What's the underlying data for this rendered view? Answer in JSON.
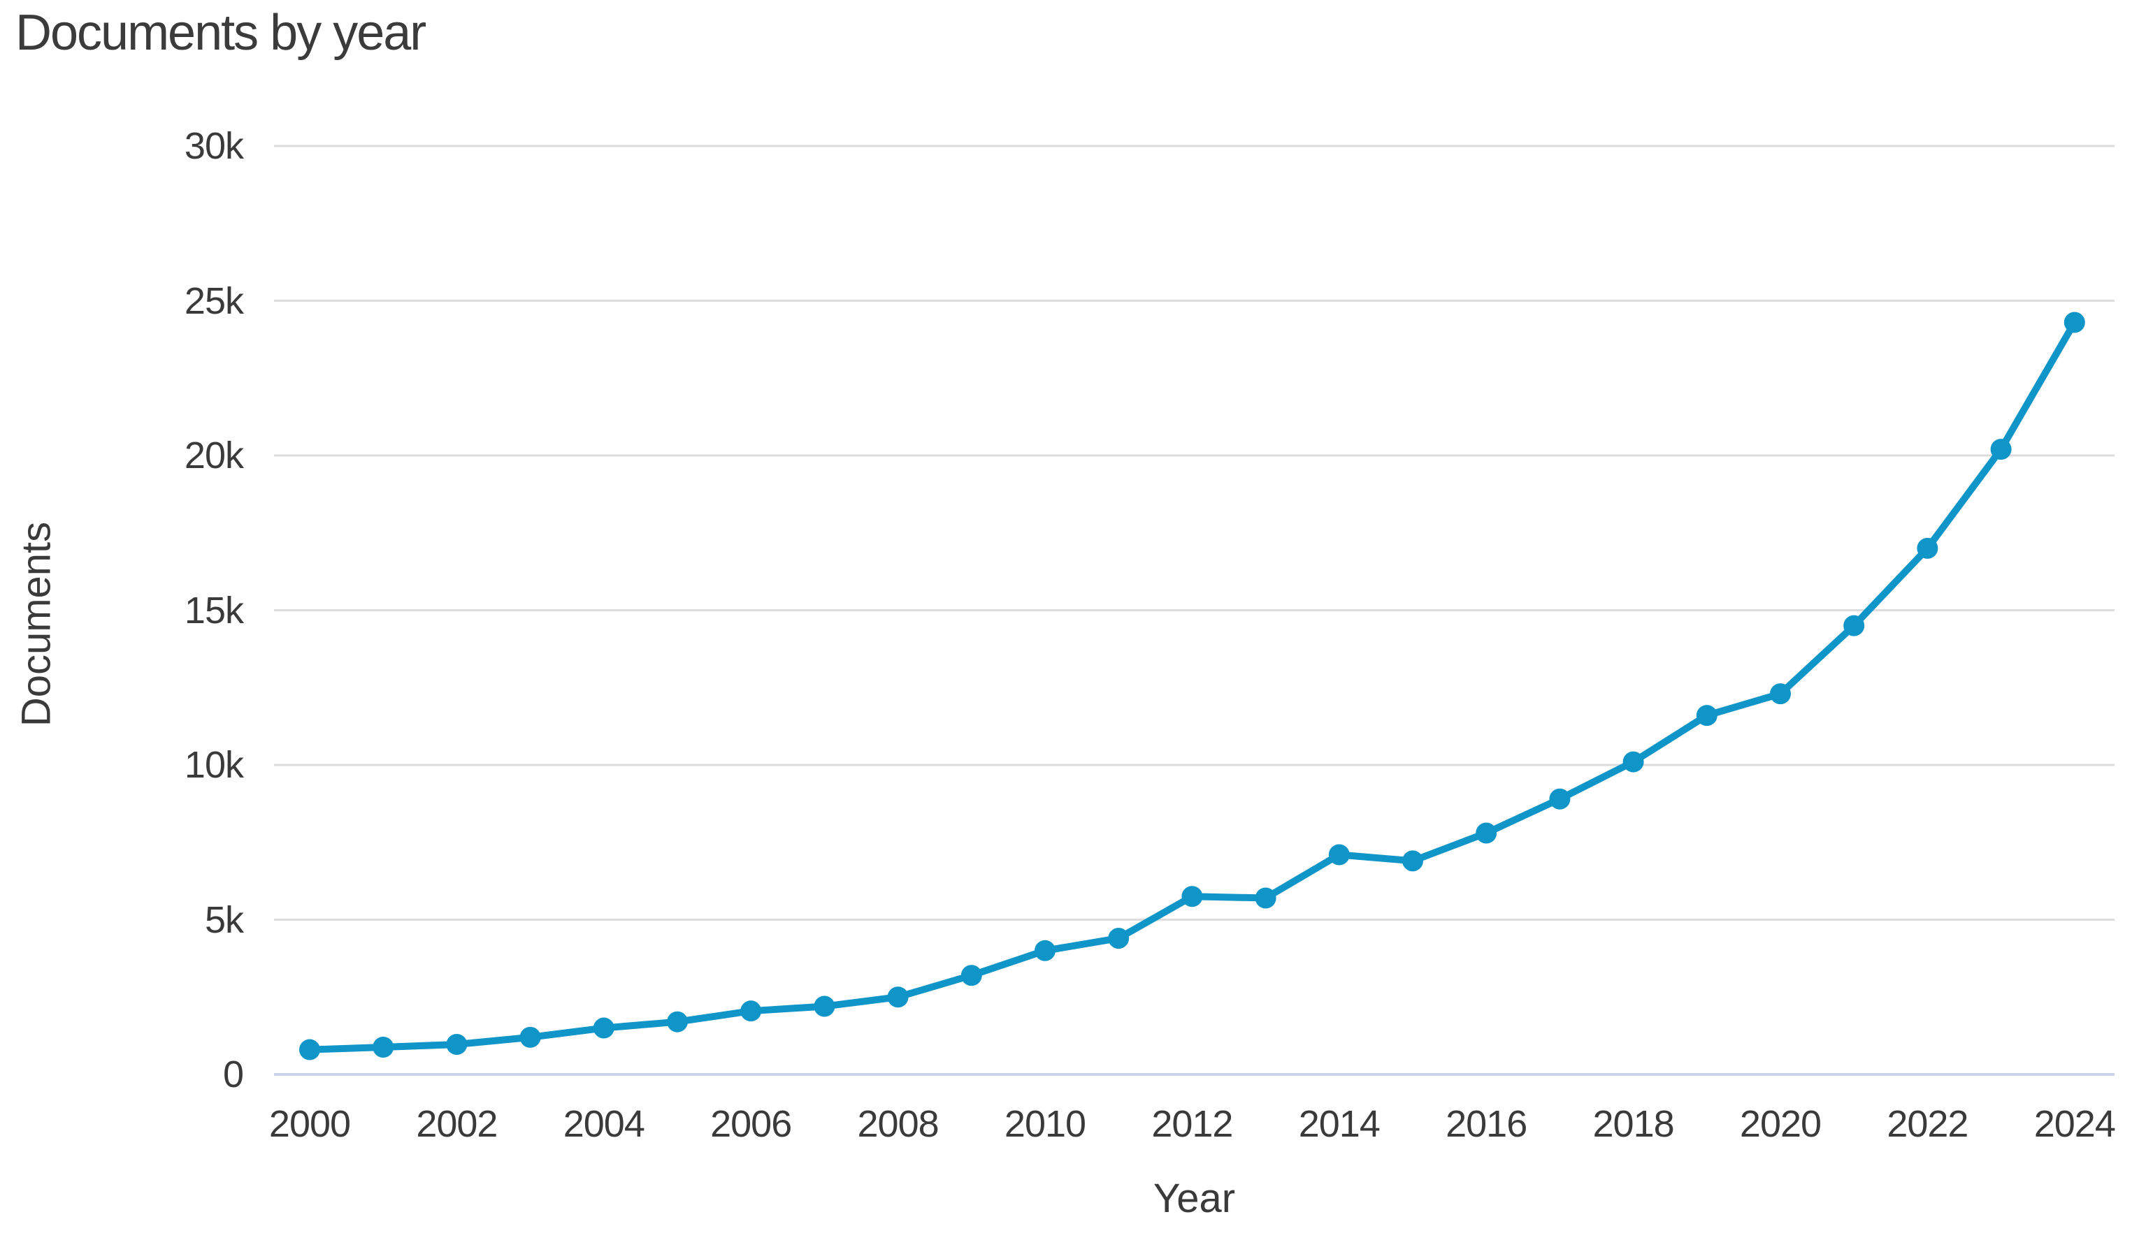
{
  "chart_data": {
    "type": "line",
    "title": "Documents by year",
    "xlabel": "Year",
    "ylabel": "Documents",
    "x": [
      2000,
      2001,
      2002,
      2003,
      2004,
      2005,
      2006,
      2007,
      2008,
      2009,
      2010,
      2011,
      2012,
      2013,
      2014,
      2015,
      2016,
      2017,
      2018,
      2019,
      2020,
      2021,
      2022,
      2023,
      2024
    ],
    "values": [
      800,
      880,
      970,
      1200,
      1500,
      1700,
      2050,
      2200,
      2500,
      3200,
      4000,
      4400,
      5750,
      5700,
      7100,
      6900,
      7800,
      8900,
      10100,
      11600,
      12300,
      14500,
      17000,
      20200,
      24300
    ],
    "ylim": [
      0,
      30000
    ],
    "yticks": [
      {
        "value": 0,
        "label": "0"
      },
      {
        "value": 5000,
        "label": "5k"
      },
      {
        "value": 10000,
        "label": "10k"
      },
      {
        "value": 15000,
        "label": "15k"
      },
      {
        "value": 20000,
        "label": "20k"
      },
      {
        "value": 25000,
        "label": "25k"
      },
      {
        "value": 30000,
        "label": "30k"
      }
    ],
    "xticks": [
      {
        "value": 2000,
        "label": "2000"
      },
      {
        "value": 2002,
        "label": "2002"
      },
      {
        "value": 2004,
        "label": "2004"
      },
      {
        "value": 2006,
        "label": "2006"
      },
      {
        "value": 2008,
        "label": "2008"
      },
      {
        "value": 2010,
        "label": "2010"
      },
      {
        "value": 2012,
        "label": "2012"
      },
      {
        "value": 2014,
        "label": "2014"
      },
      {
        "value": 2016,
        "label": "2016"
      },
      {
        "value": 2018,
        "label": "2018"
      },
      {
        "value": 2020,
        "label": "2020"
      },
      {
        "value": 2022,
        "label": "2022"
      },
      {
        "value": 2024,
        "label": "2024"
      }
    ],
    "legend": null,
    "grid": "horizontal",
    "colors": {
      "line": "#1095c8",
      "marker": "#1095c8",
      "gridline": "#dcdcdc",
      "zero_line": "#c9d4e8",
      "title_text": "#3b3b3b",
      "tick_text": "#3a3a3a",
      "background": "#ffffff"
    }
  }
}
